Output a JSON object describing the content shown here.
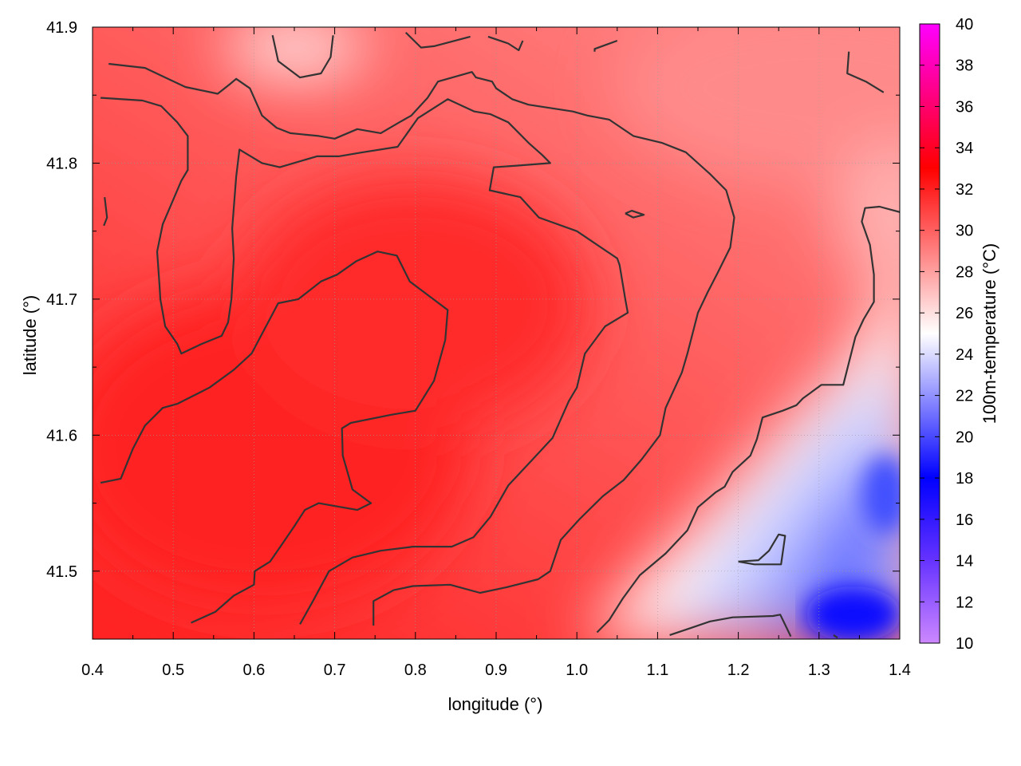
{
  "chart_data": {
    "type": "heatmap",
    "title": "",
    "xlabel": "longitude (°)",
    "ylabel": "latitude (°)",
    "colorbar_label": "100m-temperature (°C)",
    "xlim": [
      0.4,
      1.4
    ],
    "ylim": [
      41.45,
      41.9
    ],
    "x_ticks": [
      "0.4",
      "0.5",
      "0.6",
      "0.7",
      "0.8",
      "0.9",
      "1.0",
      "1.1",
      "1.2",
      "1.3",
      "1.4"
    ],
    "y_ticks": [
      "41.5",
      "41.6",
      "41.7",
      "41.8",
      "41.9"
    ],
    "colorbar_range": [
      10,
      40
    ],
    "colorbar_ticks": [
      "10",
      "12",
      "14",
      "16",
      "18",
      "20",
      "22",
      "24",
      "26",
      "28",
      "30",
      "32",
      "34",
      "36",
      "38",
      "40"
    ],
    "colorscale": [
      {
        "value": 10,
        "color": "#cc88ff"
      },
      {
        "value": 14,
        "color": "#6633ff"
      },
      {
        "value": 18,
        "color": "#0000ff"
      },
      {
        "value": 25,
        "color": "#ffffff"
      },
      {
        "value": 33,
        "color": "#ff0000"
      },
      {
        "value": 40,
        "color": "#ff00ff"
      }
    ],
    "grid": true,
    "contour_levels": [
      24,
      28,
      32
    ],
    "contours": [
      {
        "level": 32,
        "points": [
          [
            0.41,
            41.565
          ],
          [
            0.435,
            41.568
          ],
          [
            0.45,
            41.59
          ],
          [
            0.465,
            41.607
          ],
          [
            0.487,
            41.62
          ],
          [
            0.505,
            41.623
          ],
          [
            0.545,
            41.635
          ],
          [
            0.575,
            41.648
          ],
          [
            0.597,
            41.66
          ],
          [
            0.63,
            41.697
          ],
          [
            0.655,
            41.7
          ],
          [
            0.683,
            41.713
          ],
          [
            0.703,
            41.718
          ],
          [
            0.727,
            41.728
          ],
          [
            0.753,
            41.735
          ],
          [
            0.777,
            41.732
          ],
          [
            0.793,
            41.713
          ],
          [
            0.84,
            41.692
          ],
          [
            0.837,
            41.67
          ],
          [
            0.823,
            41.64
          ],
          [
            0.8,
            41.618
          ],
          [
            0.77,
            41.615
          ],
          [
            0.72,
            41.609
          ],
          [
            0.709,
            41.605
          ],
          [
            0.71,
            41.585
          ],
          [
            0.722,
            41.56
          ],
          [
            0.745,
            41.55
          ],
          [
            0.728,
            41.545
          ],
          [
            0.68,
            41.55
          ],
          [
            0.663,
            41.545
          ],
          [
            0.65,
            41.533
          ],
          [
            0.635,
            41.52
          ],
          [
            0.62,
            41.507
          ],
          [
            0.601,
            41.5
          ],
          [
            0.6,
            41.49
          ],
          [
            0.575,
            41.482
          ],
          [
            0.552,
            41.47
          ],
          [
            0.522,
            41.462
          ]
        ]
      },
      {
        "level": 32,
        "points": [
          [
            0.415,
            41.775
          ],
          [
            0.418,
            41.76
          ],
          [
            0.414,
            41.754
          ]
        ]
      },
      {
        "level": 32,
        "points": [
          [
            0.657,
            41.461
          ],
          [
            0.673,
            41.478
          ],
          [
            0.693,
            41.5
          ],
          [
            0.722,
            41.51
          ],
          [
            0.757,
            41.515
          ],
          [
            0.797,
            41.518
          ],
          [
            0.845,
            41.518
          ],
          [
            0.872,
            41.525
          ],
          [
            0.893,
            41.54
          ],
          [
            0.915,
            41.563
          ],
          [
            0.945,
            41.582
          ],
          [
            0.97,
            41.598
          ],
          [
            0.99,
            41.625
          ],
          [
            1.0,
            41.635
          ],
          [
            1.01,
            41.66
          ],
          [
            1.035,
            41.68
          ],
          [
            1.063,
            41.69
          ],
          [
            1.06,
            41.7
          ],
          [
            1.053,
            41.725
          ],
          [
            1.05,
            41.73
          ],
          [
            1.0,
            41.75
          ],
          [
            0.953,
            41.76
          ],
          [
            0.93,
            41.775
          ],
          [
            0.892,
            41.78
          ],
          [
            0.897,
            41.797
          ],
          [
            0.922,
            41.798
          ],
          [
            0.967,
            41.8
          ],
          [
            0.957,
            41.806
          ],
          [
            0.94,
            41.815
          ],
          [
            0.915,
            41.83
          ],
          [
            0.893,
            41.836
          ],
          [
            0.873,
            41.838
          ],
          [
            0.84,
            41.847
          ],
          [
            0.803,
            41.833
          ],
          [
            0.778,
            41.812
          ],
          [
            0.735,
            41.808
          ],
          [
            0.705,
            41.805
          ],
          [
            0.678,
            41.805
          ],
          [
            0.632,
            41.797
          ],
          [
            0.61,
            41.8
          ],
          [
            0.582,
            41.81
          ],
          [
            0.578,
            41.79
          ],
          [
            0.573,
            41.752
          ],
          [
            0.575,
            41.73
          ],
          [
            0.572,
            41.7
          ],
          [
            0.568,
            41.683
          ],
          [
            0.56,
            41.673
          ],
          [
            0.535,
            41.667
          ],
          [
            0.51,
            41.66
          ],
          [
            0.505,
            41.667
          ],
          [
            0.49,
            41.68
          ],
          [
            0.484,
            41.7
          ],
          [
            0.483,
            41.71
          ],
          [
            0.48,
            41.735
          ],
          [
            0.487,
            41.755
          ],
          [
            0.51,
            41.787
          ],
          [
            0.518,
            41.795
          ],
          [
            0.518,
            41.82
          ],
          [
            0.505,
            41.83
          ],
          [
            0.485,
            41.842
          ],
          [
            0.462,
            41.846
          ],
          [
            0.41,
            41.848
          ]
        ]
      },
      {
        "level": 28,
        "points": [
          [
            0.748,
            41.46
          ],
          [
            0.748,
            41.478
          ],
          [
            0.773,
            41.486
          ],
          [
            0.797,
            41.489
          ],
          [
            0.843,
            41.49
          ],
          [
            0.88,
            41.484
          ],
          [
            0.912,
            41.488
          ],
          [
            0.952,
            41.494
          ],
          [
            0.967,
            41.5
          ],
          [
            0.98,
            41.523
          ],
          [
            1.003,
            41.538
          ],
          [
            1.032,
            41.555
          ],
          [
            1.058,
            41.567
          ],
          [
            1.08,
            41.582
          ],
          [
            1.103,
            41.6
          ],
          [
            1.11,
            41.62
          ],
          [
            1.13,
            41.646
          ],
          [
            1.137,
            41.66
          ],
          [
            1.15,
            41.69
          ],
          [
            1.162,
            41.705
          ],
          [
            1.175,
            41.72
          ],
          [
            1.19,
            41.738
          ],
          [
            1.195,
            41.76
          ],
          [
            1.185,
            41.78
          ],
          [
            1.165,
            41.792
          ],
          [
            1.135,
            41.808
          ],
          [
            1.105,
            41.815
          ],
          [
            1.07,
            41.82
          ],
          [
            1.04,
            41.832
          ],
          [
            1.013,
            41.835
          ],
          [
            0.995,
            41.838
          ],
          [
            0.94,
            41.843
          ],
          [
            0.92,
            41.847
          ],
          [
            0.9,
            41.855
          ],
          [
            0.895,
            41.86
          ],
          [
            0.875,
            41.863
          ],
          [
            0.87,
            41.867
          ],
          [
            0.828,
            41.86
          ],
          [
            0.815,
            41.848
          ],
          [
            0.795,
            41.835
          ],
          [
            0.78,
            41.83
          ],
          [
            0.757,
            41.822
          ],
          [
            0.728,
            41.825
          ],
          [
            0.7,
            41.818
          ],
          [
            0.68,
            41.82
          ],
          [
            0.645,
            41.822
          ],
          [
            0.628,
            41.826
          ],
          [
            0.61,
            41.835
          ],
          [
            0.595,
            41.855
          ],
          [
            0.578,
            41.862
          ],
          [
            0.57,
            41.858
          ],
          [
            0.555,
            41.851
          ],
          [
            0.515,
            41.856
          ],
          [
            0.49,
            41.863
          ],
          [
            0.465,
            41.87
          ],
          [
            0.42,
            41.873
          ]
        ]
      },
      {
        "level": 28,
        "points": [
          [
            0.623,
            41.894
          ],
          [
            0.63,
            41.875
          ],
          [
            0.657,
            41.863
          ],
          [
            0.683,
            41.866
          ],
          [
            0.695,
            41.878
          ],
          [
            0.698,
            41.894
          ]
        ]
      },
      {
        "level": 28,
        "points": [
          [
            0.788,
            41.896
          ],
          [
            0.807,
            41.885
          ],
          [
            0.823,
            41.886
          ],
          [
            0.868,
            41.893
          ]
        ]
      },
      {
        "level": 28,
        "points": [
          [
            0.89,
            41.893
          ],
          [
            0.915,
            41.888
          ],
          [
            0.928,
            41.883
          ],
          [
            0.933,
            41.89
          ]
        ]
      },
      {
        "level": 28,
        "points": [
          [
            1.022,
            41.882
          ],
          [
            1.022,
            41.884
          ],
          [
            1.05,
            41.89
          ]
        ]
      },
      {
        "level": 28,
        "points": [
          [
            1.337,
            41.882
          ],
          [
            1.335,
            41.866
          ],
          [
            1.358,
            41.86
          ],
          [
            1.38,
            41.852
          ]
        ]
      },
      {
        "level": 28,
        "points": [
          [
            1.06,
            41.763
          ],
          [
            1.068,
            41.765
          ],
          [
            1.083,
            41.762
          ],
          [
            1.07,
            41.76
          ],
          [
            1.06,
            41.763
          ]
        ]
      },
      {
        "level": 24,
        "points": [
          [
            1.025,
            41.455
          ],
          [
            1.04,
            41.464
          ],
          [
            1.057,
            41.48
          ],
          [
            1.078,
            41.497
          ],
          [
            1.11,
            41.513
          ],
          [
            1.137,
            41.53
          ],
          [
            1.15,
            41.547
          ],
          [
            1.172,
            41.558
          ],
          [
            1.183,
            41.562
          ],
          [
            1.193,
            41.573
          ],
          [
            1.215,
            41.585
          ],
          [
            1.223,
            41.597
          ],
          [
            1.23,
            41.613
          ],
          [
            1.255,
            41.618
          ],
          [
            1.272,
            41.622
          ],
          [
            1.28,
            41.627
          ],
          [
            1.303,
            41.637
          ],
          [
            1.33,
            41.637
          ],
          [
            1.345,
            41.672
          ],
          [
            1.355,
            41.685
          ],
          [
            1.368,
            41.698
          ],
          [
            1.368,
            41.718
          ],
          [
            1.363,
            41.74
          ],
          [
            1.353,
            41.757
          ],
          [
            1.357,
            41.767
          ],
          [
            1.375,
            41.768
          ],
          [
            1.4,
            41.764
          ]
        ]
      },
      {
        "level": 24,
        "points": [
          [
            1.115,
            41.453
          ],
          [
            1.14,
            41.458
          ],
          [
            1.165,
            41.463
          ],
          [
            1.193,
            41.466
          ],
          [
            1.243,
            41.467
          ],
          [
            1.252,
            41.468
          ],
          [
            1.265,
            41.452
          ]
        ]
      },
      {
        "level": 24,
        "points": [
          [
            1.2,
            41.507
          ],
          [
            1.225,
            41.508
          ],
          [
            1.238,
            41.515
          ],
          [
            1.25,
            41.527
          ],
          [
            1.258,
            41.526
          ],
          [
            1.253,
            41.505
          ],
          [
            1.22,
            41.505
          ],
          [
            1.2,
            41.507
          ]
        ]
      },
      {
        "level": 24,
        "points": [
          [
            1.318,
            41.453
          ],
          [
            1.323,
            41.451
          ]
        ]
      }
    ]
  }
}
